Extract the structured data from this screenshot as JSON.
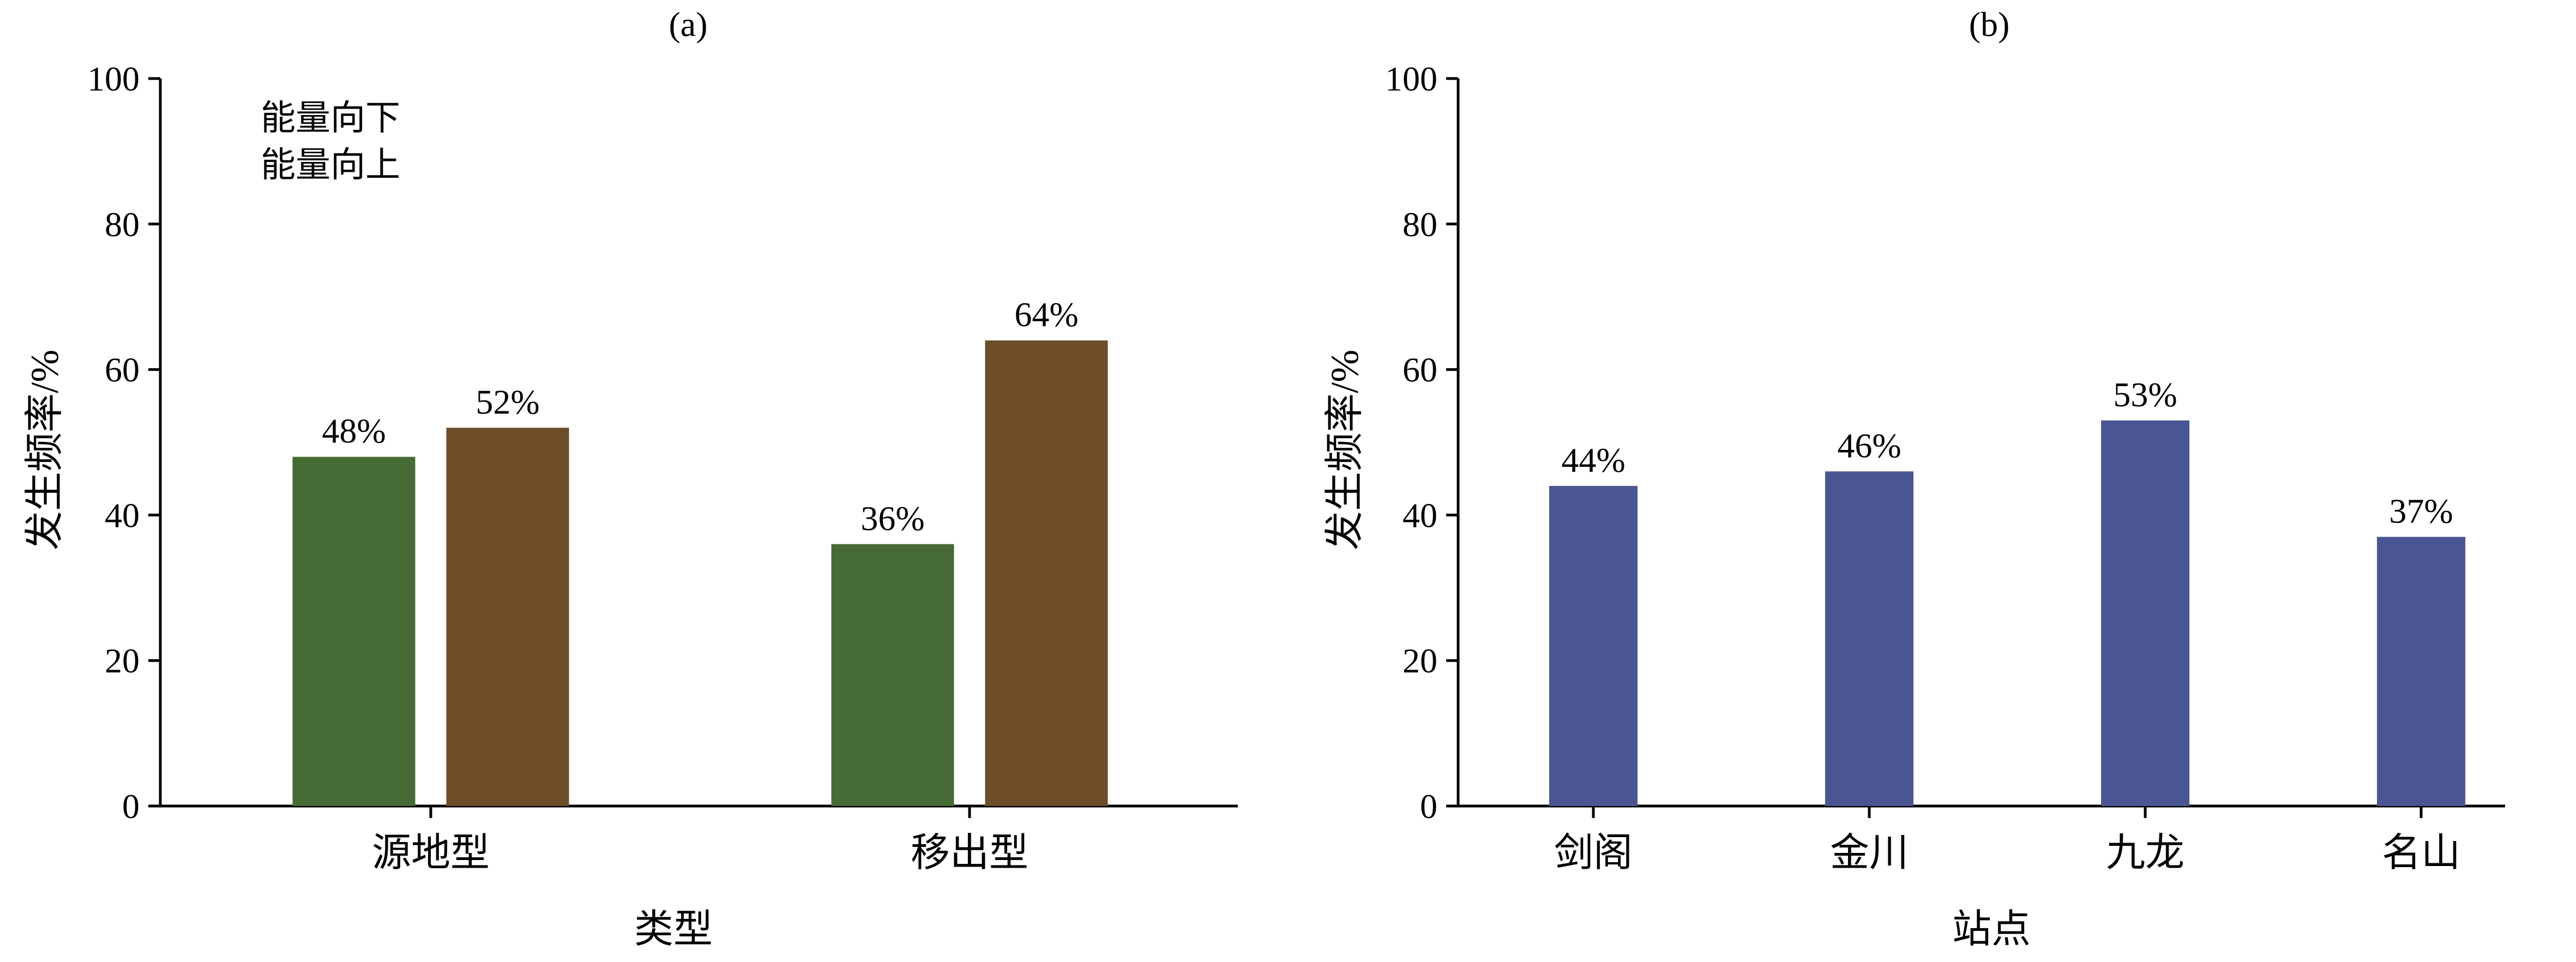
{
  "chart_data": [
    {
      "panel": "(a)",
      "type": "bar",
      "categories": [
        "源地型",
        "移出型"
      ],
      "series": [
        {
          "name": "能量向下",
          "values": [
            48,
            36
          ],
          "labels": [
            "48%",
            "36%"
          ],
          "color": "#476b34"
        },
        {
          "name": "能量向上",
          "values": [
            52,
            64
          ],
          "labels": [
            "52%",
            "64%"
          ],
          "color": "#6d4e29"
        }
      ],
      "xlabel": "类型",
      "ylabel": "发生频率/%",
      "ylim": [
        0,
        100
      ],
      "yticks": [
        "0",
        "20",
        "40",
        "60",
        "80",
        "100"
      ],
      "grid": false,
      "legend_position": "top-left"
    },
    {
      "panel": "(b)",
      "type": "bar",
      "categories": [
        "剑阁",
        "金川",
        "九龙",
        "名山"
      ],
      "series": [
        {
          "values": [
            44,
            46,
            53,
            37
          ],
          "labels": [
            "44%",
            "46%",
            "53%",
            "37%"
          ],
          "color": "#4a5593"
        }
      ],
      "xlabel": "站点",
      "ylabel": "发生频率/%",
      "ylim": [
        0,
        100
      ],
      "yticks": [
        "0",
        "20",
        "40",
        "60",
        "80",
        "100"
      ],
      "grid": false
    }
  ]
}
